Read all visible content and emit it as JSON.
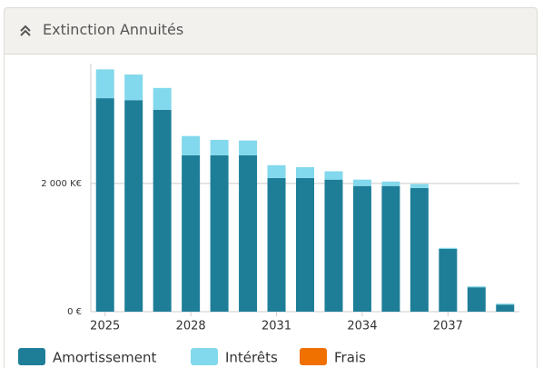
{
  "header": {
    "title": "Extinction Annuités"
  },
  "chart_data": {
    "type": "stacked_bar",
    "categories": [
      "2025",
      null,
      null,
      "2028",
      null,
      null,
      "2031",
      null,
      null,
      "2034",
      null,
      null,
      "2037",
      null,
      null
    ],
    "series": [
      {
        "name": "Amortissement",
        "color": "#1e7e98",
        "values": [
          3330,
          3300,
          3150,
          2440,
          2440,
          2440,
          2085,
          2085,
          2060,
          1960,
          1960,
          1930,
          980,
          380,
          110
        ]
      },
      {
        "name": "Intérêts",
        "color": "#82d8ec",
        "values": [
          450,
          400,
          340,
          300,
          240,
          230,
          200,
          170,
          130,
          100,
          70,
          60,
          15,
          15,
          15
        ]
      },
      {
        "name": "Frais",
        "color": "#f07000",
        "values": [
          0,
          0,
          0,
          0,
          0,
          0,
          0,
          0,
          0,
          0,
          0,
          0,
          0,
          0,
          0
        ]
      }
    ],
    "ylim": [
      0,
      3870
    ],
    "yticks": [
      {
        "value": 0,
        "label": "0 €"
      },
      {
        "value": 2000,
        "label": "2 000 K€"
      }
    ],
    "grid": true
  }
}
